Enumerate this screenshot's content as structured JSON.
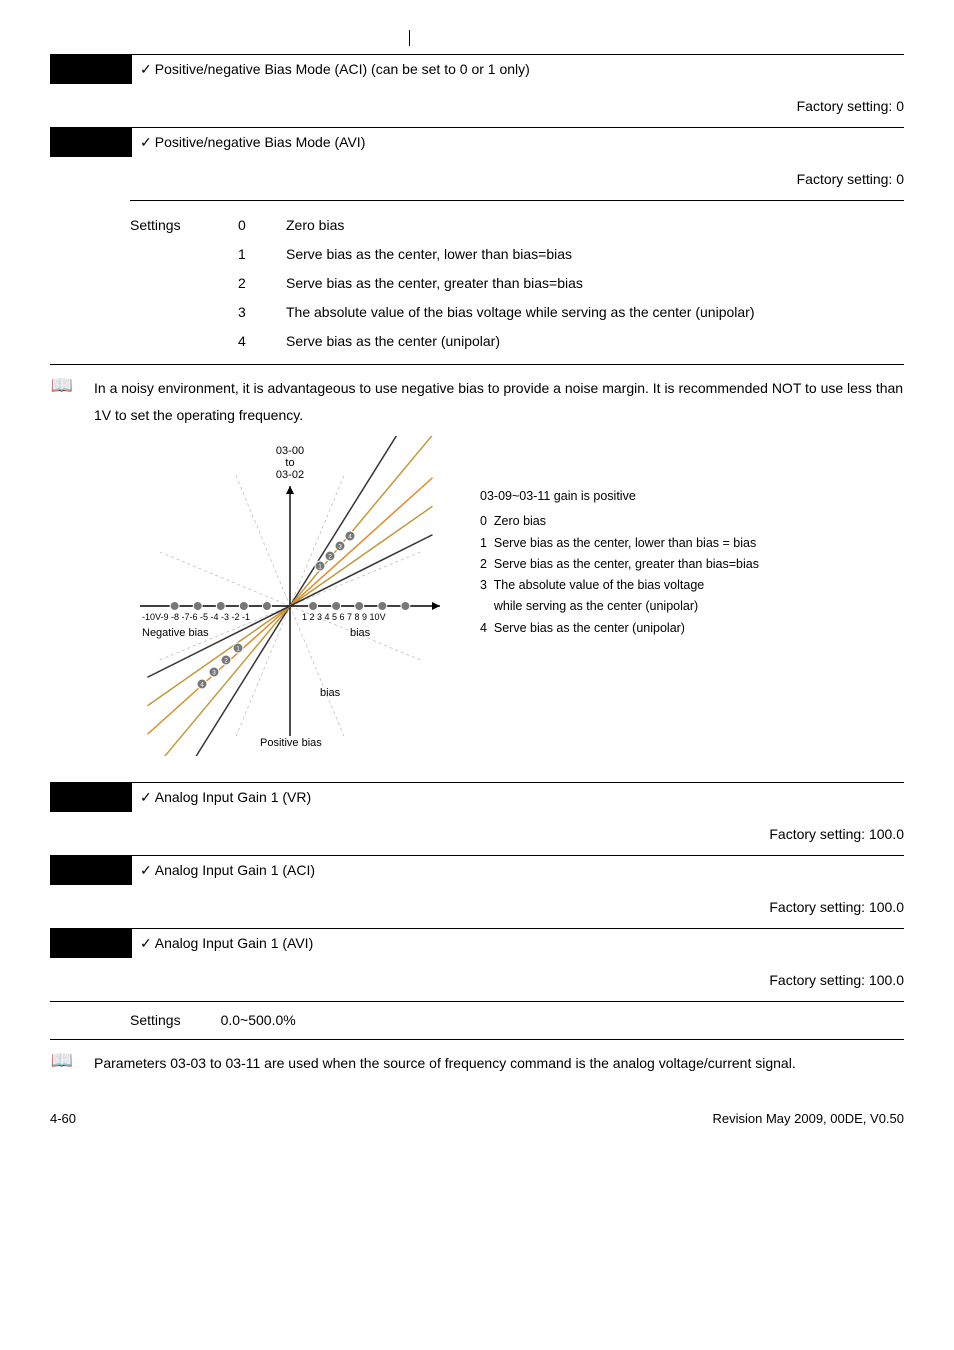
{
  "params": {
    "p1": {
      "title": "Positive/negative Bias Mode (ACI) (can be set to 0 or 1 only)",
      "factory": "Factory setting:  0"
    },
    "p2": {
      "title": "Positive/negative Bias Mode (AVI)",
      "factory": "Factory setting:  0"
    },
    "p3": {
      "title": "Analog Input Gain 1 (VR)",
      "factory": "Factory setting:  100.0"
    },
    "p4": {
      "title": "Analog Input Gain 1 (ACI)",
      "factory": "Factory setting:  100.0"
    },
    "p5": {
      "title": "Analog Input Gain 1 (AVI)",
      "factory": "Factory setting:  100.0"
    }
  },
  "settings": {
    "label": "Settings",
    "rows": [
      {
        "idx": "0",
        "desc": "Zero bias"
      },
      {
        "idx": "1",
        "desc": "Serve bias as the center, lower than bias=bias"
      },
      {
        "idx": "2",
        "desc": "Serve bias as the center, greater than bias=bias"
      },
      {
        "idx": "3",
        "desc": "The absolute value of the bias voltage while serving as the center (unipolar)"
      },
      {
        "idx": "4",
        "desc": "Serve bias as the center (unipolar)"
      }
    ]
  },
  "book1": "In a noisy environment, it is advantageous to use negative bias to provide a noise margin. It is recommended NOT to use less than 1V to set the operating frequency.",
  "diagram": {
    "top_labels": [
      "03-00",
      "to",
      "03-02"
    ],
    "neg_axis": "-10V-9 -8 -7-6 -5 -4 -3 -2 -1",
    "pos_axis": "1 2 3 4 5 6 7 8 9 10V",
    "neg_bias": "Negative bias",
    "pos_bias": "Positive bias",
    "bias1": "bias",
    "bias2": "bias",
    "colors": {
      "grid": "#bfbfbf",
      "axis": "#000",
      "line_gold": "#c19a3e",
      "line_orange": "#e08a2a",
      "line_dark": "#333",
      "marker_fill": "#777"
    }
  },
  "legend": {
    "header": "03-09~03-11 gain is positive",
    "items": [
      "0  Zero bias",
      "1  Serve bias as the center, lower than bias = bias",
      "2  Serve bias as the center, greater than bias=bias",
      "3  The absolute value of the bias voltage\n    while serving as the center (unipolar)",
      "4  Serve bias as the center (unipolar)"
    ]
  },
  "settings_simple": {
    "label": "Settings",
    "value": "0.0~500.0%"
  },
  "book2": "Parameters 03-03 to 03-11 are used when the source of frequency command is the analog voltage/current signal.",
  "footer": {
    "left": "4-60",
    "right": "Revision May 2009, 00DE, V0.50"
  }
}
